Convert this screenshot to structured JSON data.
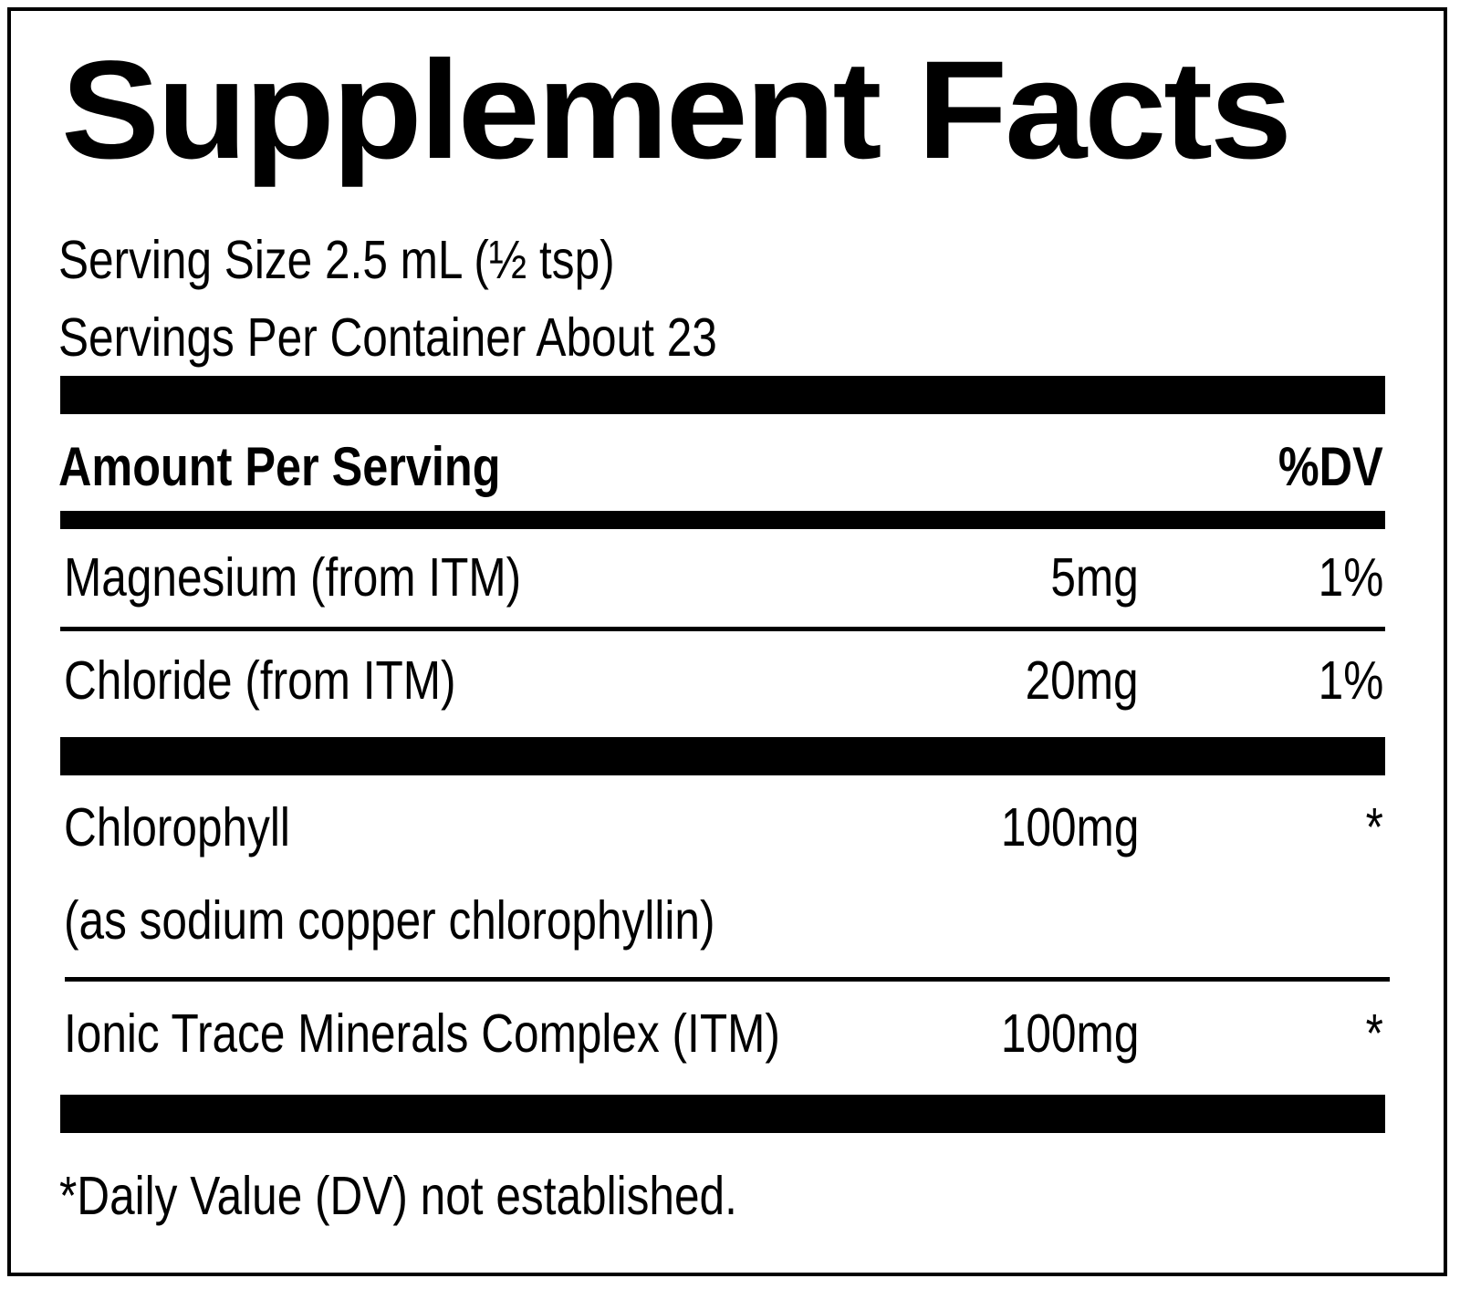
{
  "label": {
    "title": "Supplement Facts",
    "serving_size": "Serving Size 2.5 mL (½ tsp)",
    "servings_per_container": "Servings Per Container About 23",
    "header": {
      "amount_label": "Amount Per Serving",
      "dv_label": "%DV"
    },
    "rows": [
      {
        "name": "Magnesium (from ITM)",
        "amount": "5mg",
        "dv": "1%"
      },
      {
        "name": "Chloride (from ITM)",
        "amount": "20mg",
        "dv": "1%"
      },
      {
        "name": "Chlorophyll",
        "name_sub": "(as sodium copper chlorophyllin)",
        "amount": "100mg",
        "dv": "*"
      },
      {
        "name": "Ionic Trace Minerals Complex (ITM)",
        "amount": "100mg",
        "dv": "*"
      }
    ],
    "footnote": "*Daily Value (DV) not established."
  }
}
